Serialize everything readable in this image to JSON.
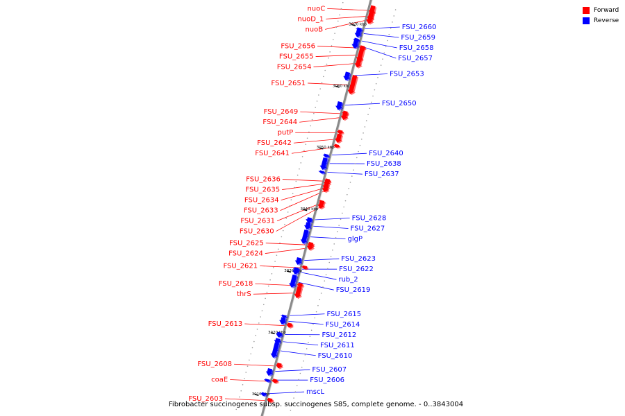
{
  "legend": {
    "forward_label": "Forward",
    "reverse_label": "Reverse"
  },
  "colors": {
    "forward": "#ff0000",
    "reverse": "#0000ff",
    "axis": "#808080"
  },
  "caption": "Fibrobacter succinogenes subsp. succinogenes S85, complete genome. - 0..3843004",
  "ticks": [
    {
      "label": "3070 kbp",
      "pos": 3070
    },
    {
      "label": "3060 kbp",
      "pos": 3060
    },
    {
      "label": "3050 kbp",
      "pos": 3050
    },
    {
      "label": "3040 kbp",
      "pos": 3040
    },
    {
      "label": "3030 kbp",
      "pos": 3030
    },
    {
      "label": "3020 kbp",
      "pos": 3020
    },
    {
      "label": "3010 kbp",
      "pos": 3010
    }
  ],
  "forward_genes": [
    {
      "name": "nuoD_1",
      "start": 3073.0,
      "end": 3071.3
    },
    {
      "name": "nuoC",
      "start": 3073.7,
      "end": 3072.3
    },
    {
      "name": "nuoB",
      "start": 3072.5,
      "end": 3070.8
    },
    {
      "name": "FSU_2656",
      "start": 3067.2,
      "end": 3066.6
    },
    {
      "name": "FSU_2655",
      "start": 3067.0,
      "end": 3064.7
    },
    {
      "name": "FSU_2654",
      "start": 3065.3,
      "end": 3063.7
    },
    {
      "name": "FSU_2651",
      "start": 3062.4,
      "end": 3059.4
    },
    {
      "name": "FSU_2649",
      "start": 3056.6,
      "end": 3055.9
    },
    {
      "name": "FSU_2644",
      "start": 3056.3,
      "end": 3055.2
    },
    {
      "name": "putP",
      "start": 3053.5,
      "end": 3052.9
    },
    {
      "name": "FSU_2642",
      "start": 3052.9,
      "end": 3051.5
    },
    {
      "name": "FSU_2641",
      "start": 3051.2,
      "end": 3050.7
    },
    {
      "name": "FSU_2636",
      "start": 3045.6,
      "end": 3045.0
    },
    {
      "name": "FSU_2635",
      "start": 3045.5,
      "end": 3044.5
    },
    {
      "name": "FSU_2634",
      "start": 3044.8,
      "end": 3043.9
    },
    {
      "name": "FSU_2633",
      "start": 3044.3,
      "end": 3043.5
    },
    {
      "name": "FSU_2631",
      "start": 3042.1,
      "end": 3041.8
    },
    {
      "name": "FSU_2630",
      "start": 3041.9,
      "end": 3040.8
    },
    {
      "name": "FSU_2625",
      "start": 3035.3,
      "end": 3034.6
    },
    {
      "name": "FSU_2624",
      "start": 3035.0,
      "end": 3034.1
    },
    {
      "name": "FSU_2621",
      "start": 3031.5,
      "end": 3031.0
    },
    {
      "name": "FSU_2618",
      "start": 3028.7,
      "end": 3028.0
    },
    {
      "name": "thrS",
      "start": 3028.1,
      "end": 3026.3
    },
    {
      "name": "FSU_2613",
      "start": 3022.2,
      "end": 3021.5
    },
    {
      "name": "FSU_2608",
      "start": 3015.7,
      "end": 3014.9
    },
    {
      "name": "coaE",
      "start": 3013.1,
      "end": 3012.5
    },
    {
      "name": "FSU_2603",
      "start": 3010.0,
      "end": 3009.4
    }
  ],
  "reverse_genes": [
    {
      "name": "FSU_2660",
      "start": 3069.8,
      "end": 3069.3
    },
    {
      "name": "FSU_2659",
      "start": 3069.6,
      "end": 3068.3
    },
    {
      "name": "FSU_2658",
      "start": 3068.1,
      "end": 3067.6
    },
    {
      "name": "FSU_2657",
      "start": 3067.9,
      "end": 3066.5
    },
    {
      "name": "FSU_2653",
      "start": 3062.6,
      "end": 3061.3
    },
    {
      "name": "FSU_2650",
      "start": 3057.8,
      "end": 3056.5
    },
    {
      "name": "FSU_2640",
      "start": 3049.3,
      "end": 3048.8
    },
    {
      "name": "FSU_2638",
      "start": 3048.7,
      "end": 3046.8
    },
    {
      "name": "FSU_2637",
      "start": 3046.6,
      "end": 3046.2
    },
    {
      "name": "FSU_2628",
      "start": 3039.0,
      "end": 3038.1
    },
    {
      "name": "FSU_2627",
      "start": 3038.2,
      "end": 3037.1
    },
    {
      "name": "glgP",
      "start": 3037.0,
      "end": 3034.8
    },
    {
      "name": "FSU_2623",
      "start": 3032.5,
      "end": 3031.4
    },
    {
      "name": "FSU_2622",
      "start": 3030.9,
      "end": 3030.3
    },
    {
      "name": "rub_2",
      "start": 3030.8,
      "end": 3029.8
    },
    {
      "name": "FSU_2619",
      "start": 3029.7,
      "end": 3027.7
    },
    {
      "name": "FSU_2615",
      "start": 3023.2,
      "end": 3022.8
    },
    {
      "name": "FSU_2614",
      "start": 3022.8,
      "end": 3021.7
    },
    {
      "name": "FSU_2612",
      "start": 3020.4,
      "end": 3019.6
    },
    {
      "name": "FSU_2611",
      "start": 3019.4,
      "end": 3018.5
    },
    {
      "name": "FSU_2610",
      "start": 3018.7,
      "end": 3016.3
    },
    {
      "name": "FSU_2607",
      "start": 3014.5,
      "end": 3013.4
    },
    {
      "name": "FSU_2606",
      "start": 3012.8,
      "end": 3012.4
    },
    {
      "name": "mscL",
      "start": 3010.6,
      "end": 3010.1
    }
  ]
}
